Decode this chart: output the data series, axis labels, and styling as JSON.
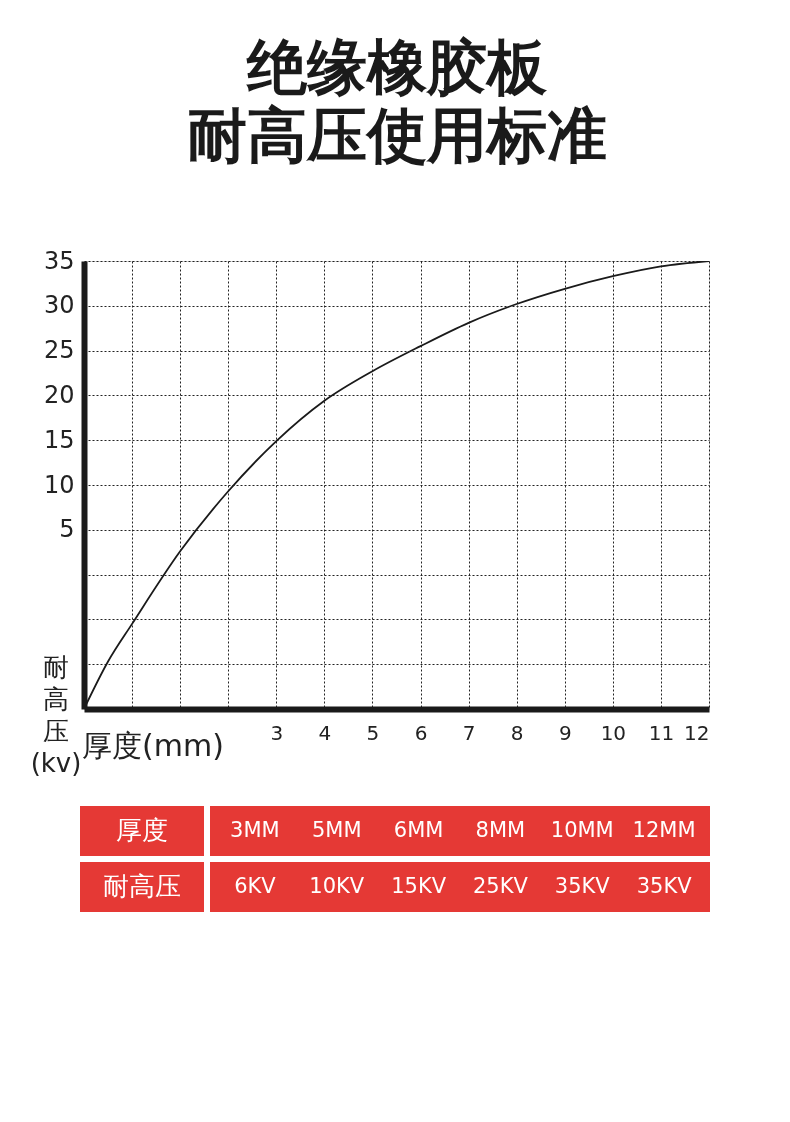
{
  "chart_data": {
    "type": "line",
    "title": "绝缘橡胶板",
    "subtitle": "耐高压使用标准",
    "xlabel": "厚度(mm)",
    "ylabel": "耐高压(kv)",
    "x": [
      -1,
      -0.5,
      0,
      1,
      2,
      3,
      4,
      5,
      6,
      7,
      8,
      9,
      10,
      11,
      12
    ],
    "series": [
      {
        "color": "#1a1a1a",
        "values": [
          -15,
          -9.7,
          -5.5,
          2.6,
          9.3,
          14.9,
          19.4,
          22.7,
          25.5,
          28.1,
          30.2,
          31.9,
          33.3,
          34.4,
          35
        ]
      }
    ],
    "xlim": [
      -1,
      12
    ],
    "xticks": [
      {
        "value": 0,
        "label": null
      },
      {
        "value": 1,
        "label": null
      },
      {
        "value": 2,
        "label": null
      },
      3,
      4,
      5,
      6,
      7,
      8,
      9,
      10,
      11,
      12
    ],
    "ylim": [
      -15,
      35
    ],
    "yticks": [
      {
        "value": -10,
        "label": null
      },
      {
        "value": -5,
        "label": null
      },
      {
        "value": 0,
        "label": null
      },
      5,
      10,
      15,
      20,
      25,
      30,
      35
    ],
    "grid": true,
    "marker": "none",
    "line_style": "solid",
    "annotations": [
      "厚度",
      "3MM",
      "5MM",
      "6MM",
      "8MM",
      "10MM",
      "12MM",
      "耐高压",
      "6KV",
      "10KV",
      "15KV",
      "25KV",
      "35KV",
      "35KV"
    ]
  }
}
